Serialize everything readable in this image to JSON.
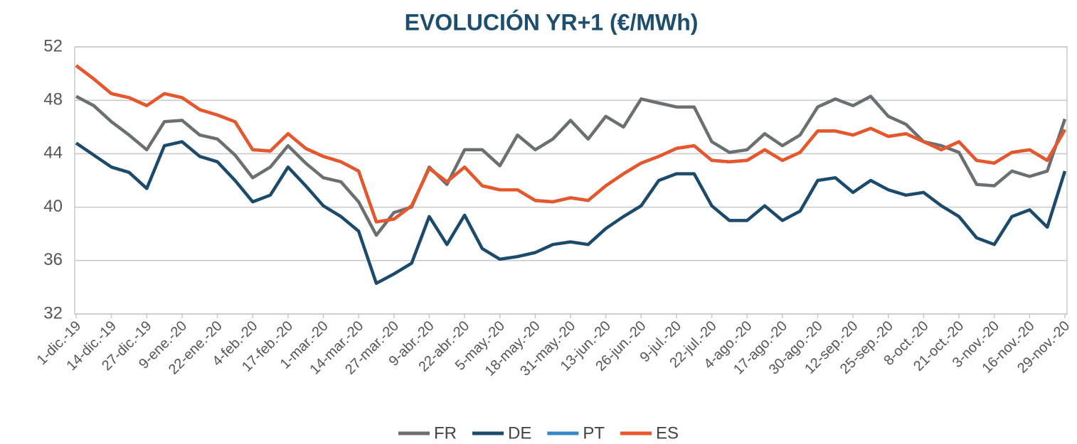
{
  "chart_data": {
    "type": "line",
    "title": "EVOLUCIÓN YR+1 (€/MWh)",
    "categories": [
      "1-dic.-19",
      null,
      "14-dic.-19",
      null,
      "27-dic.-19",
      null,
      "9-ene.-20",
      null,
      "22-ene.-20",
      null,
      "4-feb.-20",
      null,
      "17-feb.-20",
      null,
      "1-mar.-20",
      null,
      "14-mar.-20",
      null,
      "27-mar.-20",
      null,
      "9-abr.-20",
      null,
      "22-abr.-20",
      null,
      "5-may.-20",
      null,
      "18-may.-20",
      null,
      "31-may.-20",
      null,
      "13-jun.-20",
      null,
      "26-jun.-20",
      null,
      "9-jul.-20",
      null,
      "22-jul.-20",
      null,
      "4-ago.-20",
      null,
      "17-ago.-20",
      null,
      "30-ago.-20",
      null,
      "12-sep.-20",
      null,
      "25-sep.-20",
      null,
      "8-oct.-20",
      null,
      "21-oct.-20",
      null,
      "3-nov.-20",
      null,
      "16-nov.-20",
      null,
      "29-nov.-20"
    ],
    "series": [
      {
        "name": "FR",
        "color": "#6d6e71",
        "values": [
          48.3,
          47.6,
          46.4,
          45.4,
          44.3,
          46.4,
          46.5,
          45.4,
          45.1,
          43.9,
          42.2,
          43.0,
          44.6,
          43.3,
          42.2,
          41.9,
          40.4,
          37.9,
          39.6,
          40.0,
          43.0,
          41.7,
          44.3,
          44.3,
          43.1,
          45.4,
          44.3,
          45.1,
          46.5,
          45.1,
          46.8,
          46.0,
          48.1,
          47.8,
          47.5,
          47.5,
          44.9,
          44.1,
          44.3,
          45.5,
          44.6,
          45.4,
          47.5,
          48.1,
          47.6,
          48.3,
          46.8,
          46.2,
          44.9,
          44.6,
          44.1,
          41.7,
          41.6,
          42.7,
          42.3,
          42.7,
          46.6
        ]
      },
      {
        "name": "DE",
        "color": "#1b4a6b",
        "values": [
          44.8,
          43.9,
          43.0,
          42.6,
          41.4,
          44.6,
          44.9,
          43.8,
          43.4,
          42.0,
          40.4,
          40.9,
          43.0,
          41.6,
          40.1,
          39.3,
          38.2,
          34.3,
          35.0,
          35.8,
          39.3,
          37.2,
          39.4,
          36.9,
          36.1,
          36.3,
          36.6,
          37.2,
          37.4,
          37.2,
          38.4,
          39.3,
          40.1,
          42.0,
          42.5,
          42.5,
          40.1,
          39.0,
          39.0,
          40.1,
          39.0,
          39.7,
          42.0,
          42.2,
          41.1,
          42.0,
          41.3,
          40.9,
          41.1,
          40.1,
          39.3,
          37.7,
          37.2,
          39.3,
          39.8,
          38.5,
          42.7
        ]
      },
      {
        "name": "PT",
        "color": "#3a87c8",
        "values": [
          50.6,
          49.6,
          48.5,
          48.2,
          47.6,
          48.5,
          48.2,
          47.3,
          46.9,
          46.4,
          44.3,
          44.2,
          45.5,
          44.4,
          43.8,
          43.4,
          42.7,
          38.9,
          39.1,
          40.1,
          42.9,
          41.9,
          43.0,
          41.6,
          41.3,
          41.3,
          40.5,
          40.4,
          40.7,
          40.5,
          41.6,
          42.5,
          43.3,
          43.8,
          44.4,
          44.6,
          43.5,
          43.4,
          43.5,
          44.3,
          43.5,
          44.1,
          45.7,
          45.7,
          45.4,
          45.9,
          45.3,
          45.5,
          44.9,
          44.3,
          44.9,
          43.5,
          43.3,
          44.1,
          44.3,
          43.5,
          45.8
        ]
      },
      {
        "name": "ES",
        "color": "#e8562a",
        "values": [
          50.6,
          49.6,
          48.5,
          48.2,
          47.6,
          48.5,
          48.2,
          47.3,
          46.9,
          46.4,
          44.3,
          44.2,
          45.5,
          44.4,
          43.8,
          43.4,
          42.7,
          38.9,
          39.1,
          40.1,
          42.9,
          41.9,
          43.0,
          41.6,
          41.3,
          41.3,
          40.5,
          40.4,
          40.7,
          40.5,
          41.6,
          42.5,
          43.3,
          43.8,
          44.4,
          44.6,
          43.5,
          43.4,
          43.5,
          44.3,
          43.5,
          44.1,
          45.7,
          45.7,
          45.4,
          45.9,
          45.3,
          45.5,
          44.9,
          44.3,
          44.9,
          43.5,
          43.3,
          44.1,
          44.3,
          43.5,
          45.8
        ]
      }
    ],
    "ylim": [
      32,
      52
    ],
    "yticks": [
      32,
      36,
      40,
      44,
      48,
      52
    ],
    "grid": true,
    "legend": "bottom"
  }
}
